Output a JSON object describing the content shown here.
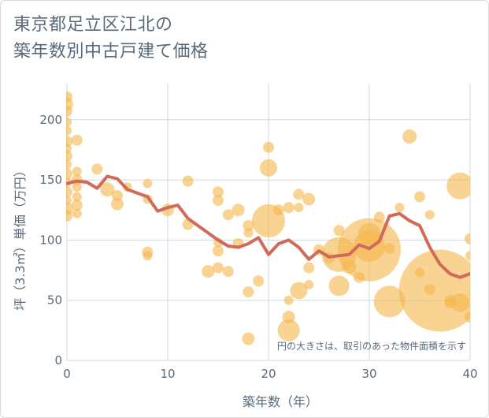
{
  "title_lines": [
    "東京都足立区江北の",
    "築年数別中古戸建て価格"
  ],
  "chart_data": {
    "type": "scatter",
    "xlabel": "築年数（年）",
    "ylabel": "坪（3.3㎡）単価（万円）",
    "xlim": [
      0,
      40
    ],
    "ylim": [
      0,
      230
    ],
    "x_ticks": [
      0,
      10,
      20,
      30,
      40
    ],
    "y_ticks": [
      0,
      50,
      100,
      150,
      200
    ],
    "grid": true,
    "annotation": "円の大きさは、取引のあった物件面積を示す",
    "colors": {
      "bubble": "#f5b84e",
      "line": "#d26a5a",
      "grid": "#cfd8e3",
      "text": "#5a6a78"
    },
    "bubbles": [
      {
        "x": 0,
        "y": 219,
        "r": 7
      },
      {
        "x": 0,
        "y": 213,
        "r": 8
      },
      {
        "x": 0,
        "y": 207,
        "r": 7
      },
      {
        "x": 0,
        "y": 198,
        "r": 6
      },
      {
        "x": 0,
        "y": 191,
        "r": 6
      },
      {
        "x": 0,
        "y": 182,
        "r": 7
      },
      {
        "x": 0,
        "y": 176,
        "r": 6
      },
      {
        "x": 0,
        "y": 170,
        "r": 7
      },
      {
        "x": 0,
        "y": 163,
        "r": 6
      },
      {
        "x": 0,
        "y": 155,
        "r": 7
      },
      {
        "x": 0,
        "y": 148,
        "r": 6
      },
      {
        "x": 0,
        "y": 140,
        "r": 7
      },
      {
        "x": 0,
        "y": 133,
        "r": 6
      },
      {
        "x": 0,
        "y": 126,
        "r": 8
      },
      {
        "x": 0,
        "y": 120,
        "r": 7
      },
      {
        "x": 1,
        "y": 183,
        "r": 7
      },
      {
        "x": 1,
        "y": 157,
        "r": 6
      },
      {
        "x": 1,
        "y": 150,
        "r": 7
      },
      {
        "x": 1,
        "y": 144,
        "r": 6
      },
      {
        "x": 1,
        "y": 136,
        "r": 6
      },
      {
        "x": 1,
        "y": 129,
        "r": 7
      },
      {
        "x": 1,
        "y": 122,
        "r": 6
      },
      {
        "x": 3,
        "y": 159,
        "r": 7
      },
      {
        "x": 4,
        "y": 142,
        "r": 9
      },
      {
        "x": 5,
        "y": 137,
        "r": 7
      },
      {
        "x": 5,
        "y": 130,
        "r": 8
      },
      {
        "x": 6,
        "y": 144,
        "r": 6
      },
      {
        "x": 8,
        "y": 147,
        "r": 6
      },
      {
        "x": 8,
        "y": 134,
        "r": 6
      },
      {
        "x": 8,
        "y": 90,
        "r": 7
      },
      {
        "x": 8,
        "y": 87,
        "r": 6
      },
      {
        "x": 10,
        "y": 125,
        "r": 8
      },
      {
        "x": 12,
        "y": 149,
        "r": 7
      },
      {
        "x": 12,
        "y": 113,
        "r": 7
      },
      {
        "x": 14,
        "y": 74,
        "r": 8
      },
      {
        "x": 15,
        "y": 140,
        "r": 7
      },
      {
        "x": 15,
        "y": 133,
        "r": 7
      },
      {
        "x": 15,
        "y": 98,
        "r": 6
      },
      {
        "x": 15,
        "y": 91,
        "r": 7
      },
      {
        "x": 15,
        "y": 77,
        "r": 7
      },
      {
        "x": 16,
        "y": 121,
        "r": 7
      },
      {
        "x": 16,
        "y": 74,
        "r": 7
      },
      {
        "x": 17,
        "y": 125,
        "r": 8
      },
      {
        "x": 17,
        "y": 97,
        "r": 7
      },
      {
        "x": 18,
        "y": 112,
        "r": 7
      },
      {
        "x": 18,
        "y": 106,
        "r": 6
      },
      {
        "x": 18,
        "y": 57,
        "r": 7
      },
      {
        "x": 18,
        "y": 18,
        "r": 8
      },
      {
        "x": 19,
        "y": 66,
        "r": 7
      },
      {
        "x": 20,
        "y": 177,
        "r": 7
      },
      {
        "x": 20,
        "y": 160,
        "r": 11
      },
      {
        "x": 20,
        "y": 116,
        "r": 21
      },
      {
        "x": 21,
        "y": 125,
        "r": 7
      },
      {
        "x": 22,
        "y": 127,
        "r": 7
      },
      {
        "x": 22,
        "y": 50,
        "r": 6
      },
      {
        "x": 22,
        "y": 36,
        "r": 8
      },
      {
        "x": 22,
        "y": 25,
        "r": 14
      },
      {
        "x": 23,
        "y": 138,
        "r": 7
      },
      {
        "x": 23,
        "y": 127,
        "r": 6
      },
      {
        "x": 23,
        "y": 58,
        "r": 11
      },
      {
        "x": 24,
        "y": 134,
        "r": 8
      },
      {
        "x": 24,
        "y": 77,
        "r": 7
      },
      {
        "x": 24,
        "y": 63,
        "r": 6
      },
      {
        "x": 25,
        "y": 92,
        "r": 7
      },
      {
        "x": 26,
        "y": 85,
        "r": 7
      },
      {
        "x": 27,
        "y": 108,
        "r": 7
      },
      {
        "x": 27,
        "y": 88,
        "r": 22
      },
      {
        "x": 27,
        "y": 62,
        "r": 13
      },
      {
        "x": 28,
        "y": 78,
        "r": 9
      },
      {
        "x": 29,
        "y": 69,
        "r": 7
      },
      {
        "x": 30,
        "y": 105,
        "r": 14
      },
      {
        "x": 30,
        "y": 95,
        "r": 20
      },
      {
        "x": 30,
        "y": 92,
        "r": 40
      },
      {
        "x": 31,
        "y": 119,
        "r": 7
      },
      {
        "x": 32,
        "y": 93,
        "r": 7
      },
      {
        "x": 32,
        "y": 49,
        "r": 20
      },
      {
        "x": 33,
        "y": 127,
        "r": 6
      },
      {
        "x": 34,
        "y": 186,
        "r": 9
      },
      {
        "x": 35,
        "y": 136,
        "r": 7
      },
      {
        "x": 35,
        "y": 73,
        "r": 6
      },
      {
        "x": 36,
        "y": 121,
        "r": 6
      },
      {
        "x": 36,
        "y": 59,
        "r": 7
      },
      {
        "x": 37,
        "y": 58,
        "r": 52
      },
      {
        "x": 38,
        "y": 50,
        "r": 7
      },
      {
        "x": 38,
        "y": 48,
        "r": 7
      },
      {
        "x": 39,
        "y": 145,
        "r": 17
      },
      {
        "x": 39,
        "y": 48,
        "r": 12
      },
      {
        "x": 40,
        "y": 101,
        "r": 7
      },
      {
        "x": 40,
        "y": 87,
        "r": 6
      },
      {
        "x": 40,
        "y": 36,
        "r": 7
      }
    ],
    "line": {
      "x": [
        0,
        1,
        2,
        3,
        4,
        5,
        6,
        7,
        8,
        9,
        10,
        11,
        12,
        13,
        14,
        15,
        16,
        17,
        18,
        19,
        20,
        21,
        22,
        23,
        24,
        25,
        26,
        27,
        28,
        29,
        30,
        31,
        32,
        33,
        34,
        35,
        36,
        37,
        38,
        39,
        40
      ],
      "y": [
        147,
        149,
        148,
        143,
        153,
        151,
        142,
        139,
        136,
        124,
        127,
        129,
        118,
        112,
        106,
        100,
        95,
        94,
        97,
        102,
        88,
        97,
        100,
        94,
        84,
        91,
        86,
        87,
        88,
        96,
        93,
        99,
        120,
        122,
        116,
        112,
        94,
        80,
        72,
        69,
        72
      ]
    }
  }
}
